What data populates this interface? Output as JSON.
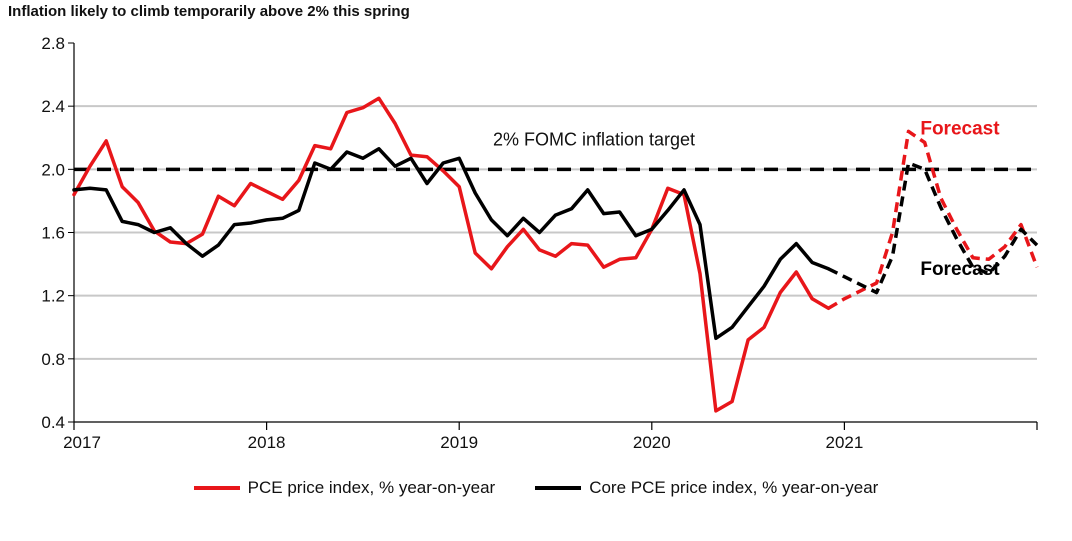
{
  "chart_data": {
    "type": "line",
    "title": "Inflation likely to climb temporarily above 2% this spring",
    "xlabel": "",
    "ylabel": "",
    "ylim": [
      0.4,
      2.8
    ],
    "y_ticks": [
      "2.8",
      "2.4",
      "2.0",
      "1.6",
      "1.2",
      "0.8",
      "0.4"
    ],
    "x_range": [
      2017.0,
      2022.0
    ],
    "x_ticks": [
      {
        "value": 2017,
        "label": "2017"
      },
      {
        "value": 2018,
        "label": "2018"
      },
      {
        "value": 2019,
        "label": "2019"
      },
      {
        "value": 2020,
        "label": "2020"
      },
      {
        "value": 2021,
        "label": "2021"
      }
    ],
    "grid": true,
    "legend_position": "bottom",
    "reference_line": {
      "y": 2.0,
      "label": "2% FOMC inflation target",
      "color": "#000000",
      "style": "dashed"
    },
    "annotations": [
      {
        "text": "Forecast",
        "x": 2021.6,
        "y": 2.22,
        "color": "#e8161a"
      },
      {
        "text": "Forecast",
        "x": 2021.6,
        "y": 1.33,
        "color": "#000000"
      }
    ],
    "series": [
      {
        "name": "PCE price index, % year-on-year",
        "color": "#e8161a",
        "x": [
          2017.0,
          2017.083,
          2017.167,
          2017.25,
          2017.333,
          2017.417,
          2017.5,
          2017.583,
          2017.667,
          2017.75,
          2017.833,
          2017.917,
          2018.0,
          2018.083,
          2018.167,
          2018.25,
          2018.333,
          2018.417,
          2018.5,
          2018.583,
          2018.667,
          2018.75,
          2018.833,
          2018.917,
          2019.0,
          2019.083,
          2019.167,
          2019.25,
          2019.333,
          2019.417,
          2019.5,
          2019.583,
          2019.667,
          2019.75,
          2019.833,
          2019.917,
          2020.0,
          2020.083,
          2020.167,
          2020.25,
          2020.333,
          2020.417,
          2020.5,
          2020.583,
          2020.667,
          2020.75,
          2020.833,
          2020.917,
          2021.0,
          2021.083,
          2021.167,
          2021.25,
          2021.333,
          2021.417,
          2021.5,
          2021.583,
          2021.667,
          2021.75,
          2021.833,
          2021.917,
          2022.0
        ],
        "y": [
          1.84,
          2.02,
          2.18,
          1.89,
          1.79,
          1.61,
          1.54,
          1.53,
          1.59,
          1.83,
          1.77,
          1.91,
          1.86,
          1.81,
          1.93,
          2.15,
          2.13,
          2.36,
          2.39,
          2.45,
          2.29,
          2.09,
          2.08,
          1.99,
          1.89,
          1.47,
          1.37,
          1.51,
          1.62,
          1.49,
          1.45,
          1.53,
          1.52,
          1.38,
          1.43,
          1.44,
          1.62,
          1.88,
          1.84,
          1.34,
          0.47,
          0.53,
          0.92,
          1.0,
          1.22,
          1.35,
          1.18,
          1.12,
          1.18,
          1.23,
          1.28,
          1.6,
          2.24,
          2.17,
          1.82,
          1.62,
          1.44,
          1.43,
          1.51,
          1.65,
          1.38
        ],
        "forecast_from_x": 2020.917
      },
      {
        "name": "Core PCE price index, % year-on-year",
        "color": "#000000",
        "x": [
          2017.0,
          2017.083,
          2017.167,
          2017.25,
          2017.333,
          2017.417,
          2017.5,
          2017.583,
          2017.667,
          2017.75,
          2017.833,
          2017.917,
          2018.0,
          2018.083,
          2018.167,
          2018.25,
          2018.333,
          2018.417,
          2018.5,
          2018.583,
          2018.667,
          2018.75,
          2018.833,
          2018.917,
          2019.0,
          2019.083,
          2019.167,
          2019.25,
          2019.333,
          2019.417,
          2019.5,
          2019.583,
          2019.667,
          2019.75,
          2019.833,
          2019.917,
          2020.0,
          2020.083,
          2020.167,
          2020.25,
          2020.333,
          2020.417,
          2020.5,
          2020.583,
          2020.667,
          2020.75,
          2020.833,
          2020.917,
          2021.0,
          2021.083,
          2021.167,
          2021.25,
          2021.333,
          2021.417,
          2021.5,
          2021.583,
          2021.667,
          2021.75,
          2021.833,
          2021.917,
          2022.0
        ],
        "y": [
          1.87,
          1.88,
          1.87,
          1.67,
          1.65,
          1.6,
          1.63,
          1.53,
          1.45,
          1.52,
          1.65,
          1.66,
          1.68,
          1.69,
          1.74,
          2.04,
          2.0,
          2.11,
          2.07,
          2.13,
          2.02,
          2.07,
          1.91,
          2.04,
          2.07,
          1.85,
          1.68,
          1.58,
          1.69,
          1.6,
          1.71,
          1.75,
          1.87,
          1.72,
          1.73,
          1.58,
          1.62,
          1.74,
          1.87,
          1.65,
          0.93,
          1.0,
          1.13,
          1.26,
          1.43,
          1.53,
          1.41,
          1.37,
          1.32,
          1.27,
          1.22,
          1.45,
          2.04,
          2.0,
          1.76,
          1.56,
          1.38,
          1.34,
          1.45,
          1.62,
          1.52
        ],
        "forecast_from_x": 2020.917
      }
    ]
  }
}
